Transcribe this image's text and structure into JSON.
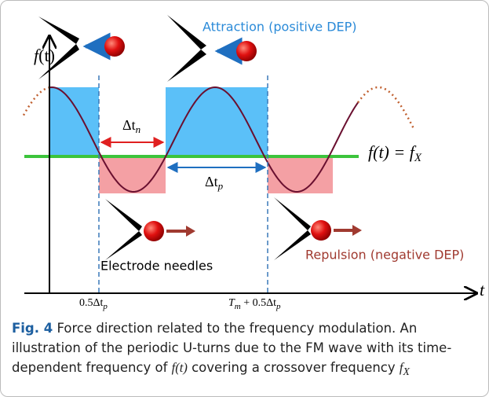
{
  "figure": {
    "y_axis_label": {
      "base": "f",
      "arg": "(t)"
    },
    "x_axis_label": "t",
    "attraction_label": "Attraction (positive DEP)",
    "repulsion_label": "Repulsion (negative DEP)",
    "electrode_label": "Electrode needles",
    "delta_tn": {
      "base": "Δt",
      "sub": "n"
    },
    "delta_tp": {
      "base": "Δt",
      "sub": "p"
    },
    "crossover": {
      "lhs": "f(t) = f",
      "sub": "X"
    },
    "tick_left": {
      "base": "0.5Δt",
      "sub": "p"
    },
    "tick_right": {
      "base": "T",
      "sub1": "m",
      "mid": " + 0.5Δt",
      "sub2": "p"
    }
  },
  "caption": {
    "label": "Fig. 4",
    "text1": " Force direction related to the frequency modulation. An illustration of the periodic U-turns due to the FM wave with its time-dependent frequency of ",
    "math1": "f(t)",
    "text2": " covering a crossover frequency ",
    "math2": "f",
    "math2_sub": "X"
  }
}
